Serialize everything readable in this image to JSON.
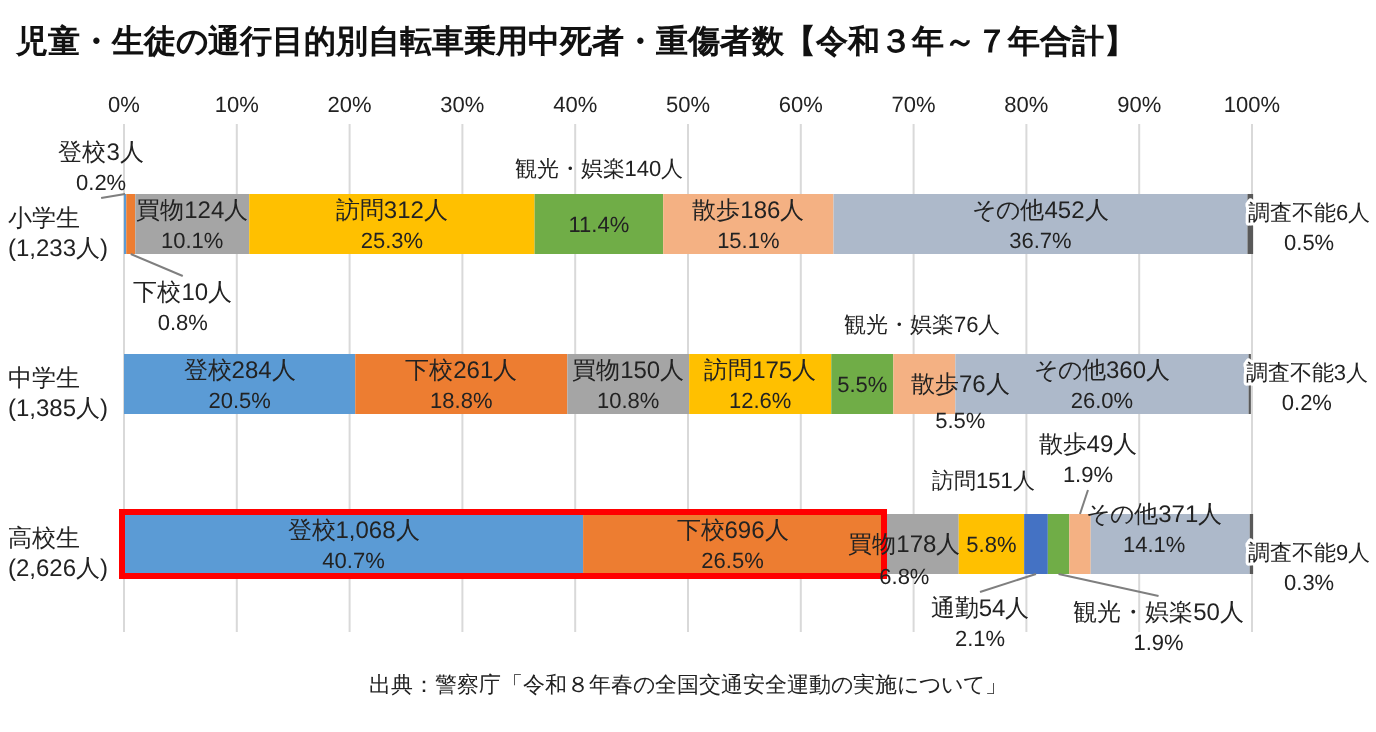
{
  "chart_data": {
    "type": "bar",
    "orientation": "horizontal",
    "stacked": true,
    "title": "児童・生徒の通行目的別自転車乗用中死者・重傷者数【令和３年～７年合計】",
    "annotations": [
      "出典：警察庁「令和８年春の全国交通安全運動の実施について」"
    ],
    "categories": [
      "小学生\n(1,233人)",
      "中学生\n(1,385人)",
      "高校生\n(2,626人)"
    ],
    "xlim": [
      0,
      100
    ],
    "xticks": [
      {
        "value": 0,
        "label": "0%"
      },
      {
        "value": 10,
        "label": "10%"
      },
      {
        "value": 20,
        "label": "20%"
      },
      {
        "value": 30,
        "label": "30%"
      },
      {
        "value": 40,
        "label": "40%"
      },
      {
        "value": 50,
        "label": "50%"
      },
      {
        "value": 60,
        "label": "60%"
      },
      {
        "value": 70,
        "label": "70%"
      },
      {
        "value": 80,
        "label": "80%"
      },
      {
        "value": 90,
        "label": "90%"
      },
      {
        "value": 100,
        "label": "100%"
      }
    ],
    "grid": "x",
    "series": [
      {
        "color": "#5b9bd5",
        "values": [
          0.2,
          20.5,
          40.7
        ],
        "value_labels": [
          "登校3人\n0.2%",
          "登校284人\n20.5%",
          "登校1,068人\n40.7%"
        ]
      },
      {
        "color": "#ed7d31",
        "values": [
          0.8,
          18.8,
          26.5
        ],
        "value_labels": [
          "下校10人\n0.8%",
          "下校261人\n18.8%",
          "下校696人\n26.5%"
        ]
      },
      {
        "color": "#a5a5a5",
        "values": [
          10.1,
          10.8,
          6.8
        ],
        "value_labels": [
          "買物124人\n10.1%",
          "買物150人\n10.8%",
          "買物178人\n6.8%"
        ]
      },
      {
        "color": "#ffc000",
        "values": [
          25.3,
          12.6,
          5.8
        ],
        "value_labels": [
          "訪問312人\n25.3%",
          "訪問175人\n12.6%",
          "訪問151人\n5.8%"
        ]
      },
      {
        "color": "#4472c4",
        "values": [
          null,
          null,
          2.1
        ],
        "value_labels": [
          null,
          null,
          "通勤54人\n2.1%"
        ]
      },
      {
        "color": "#70ad47",
        "values": [
          11.4,
          5.5,
          1.9
        ],
        "value_labels": [
          "観光・娯楽140人\n11.4%",
          "観光・娯楽76人\n5.5%",
          "観光・娯楽50人\n1.9%"
        ]
      },
      {
        "color": "#f4b183",
        "values": [
          15.1,
          5.5,
          1.9
        ],
        "value_labels": [
          "散歩186人\n15.1%",
          "散歩76人\n5.5%",
          "散歩49人\n1.9%"
        ]
      },
      {
        "color": "#adb9ca",
        "values": [
          36.7,
          26.0,
          14.1
        ],
        "value_labels": [
          "その他452人\n36.7%",
          "その他360人\n26.0%",
          "その他371人\n14.1%"
        ]
      },
      {
        "color": "#595959",
        "values": [
          0.5,
          0.2,
          0.3
        ],
        "value_labels": [
          "調査不能6人\n0.5%",
          "調査不能3人\n0.2%",
          "調査不能9人\n0.3%"
        ]
      }
    ]
  }
}
